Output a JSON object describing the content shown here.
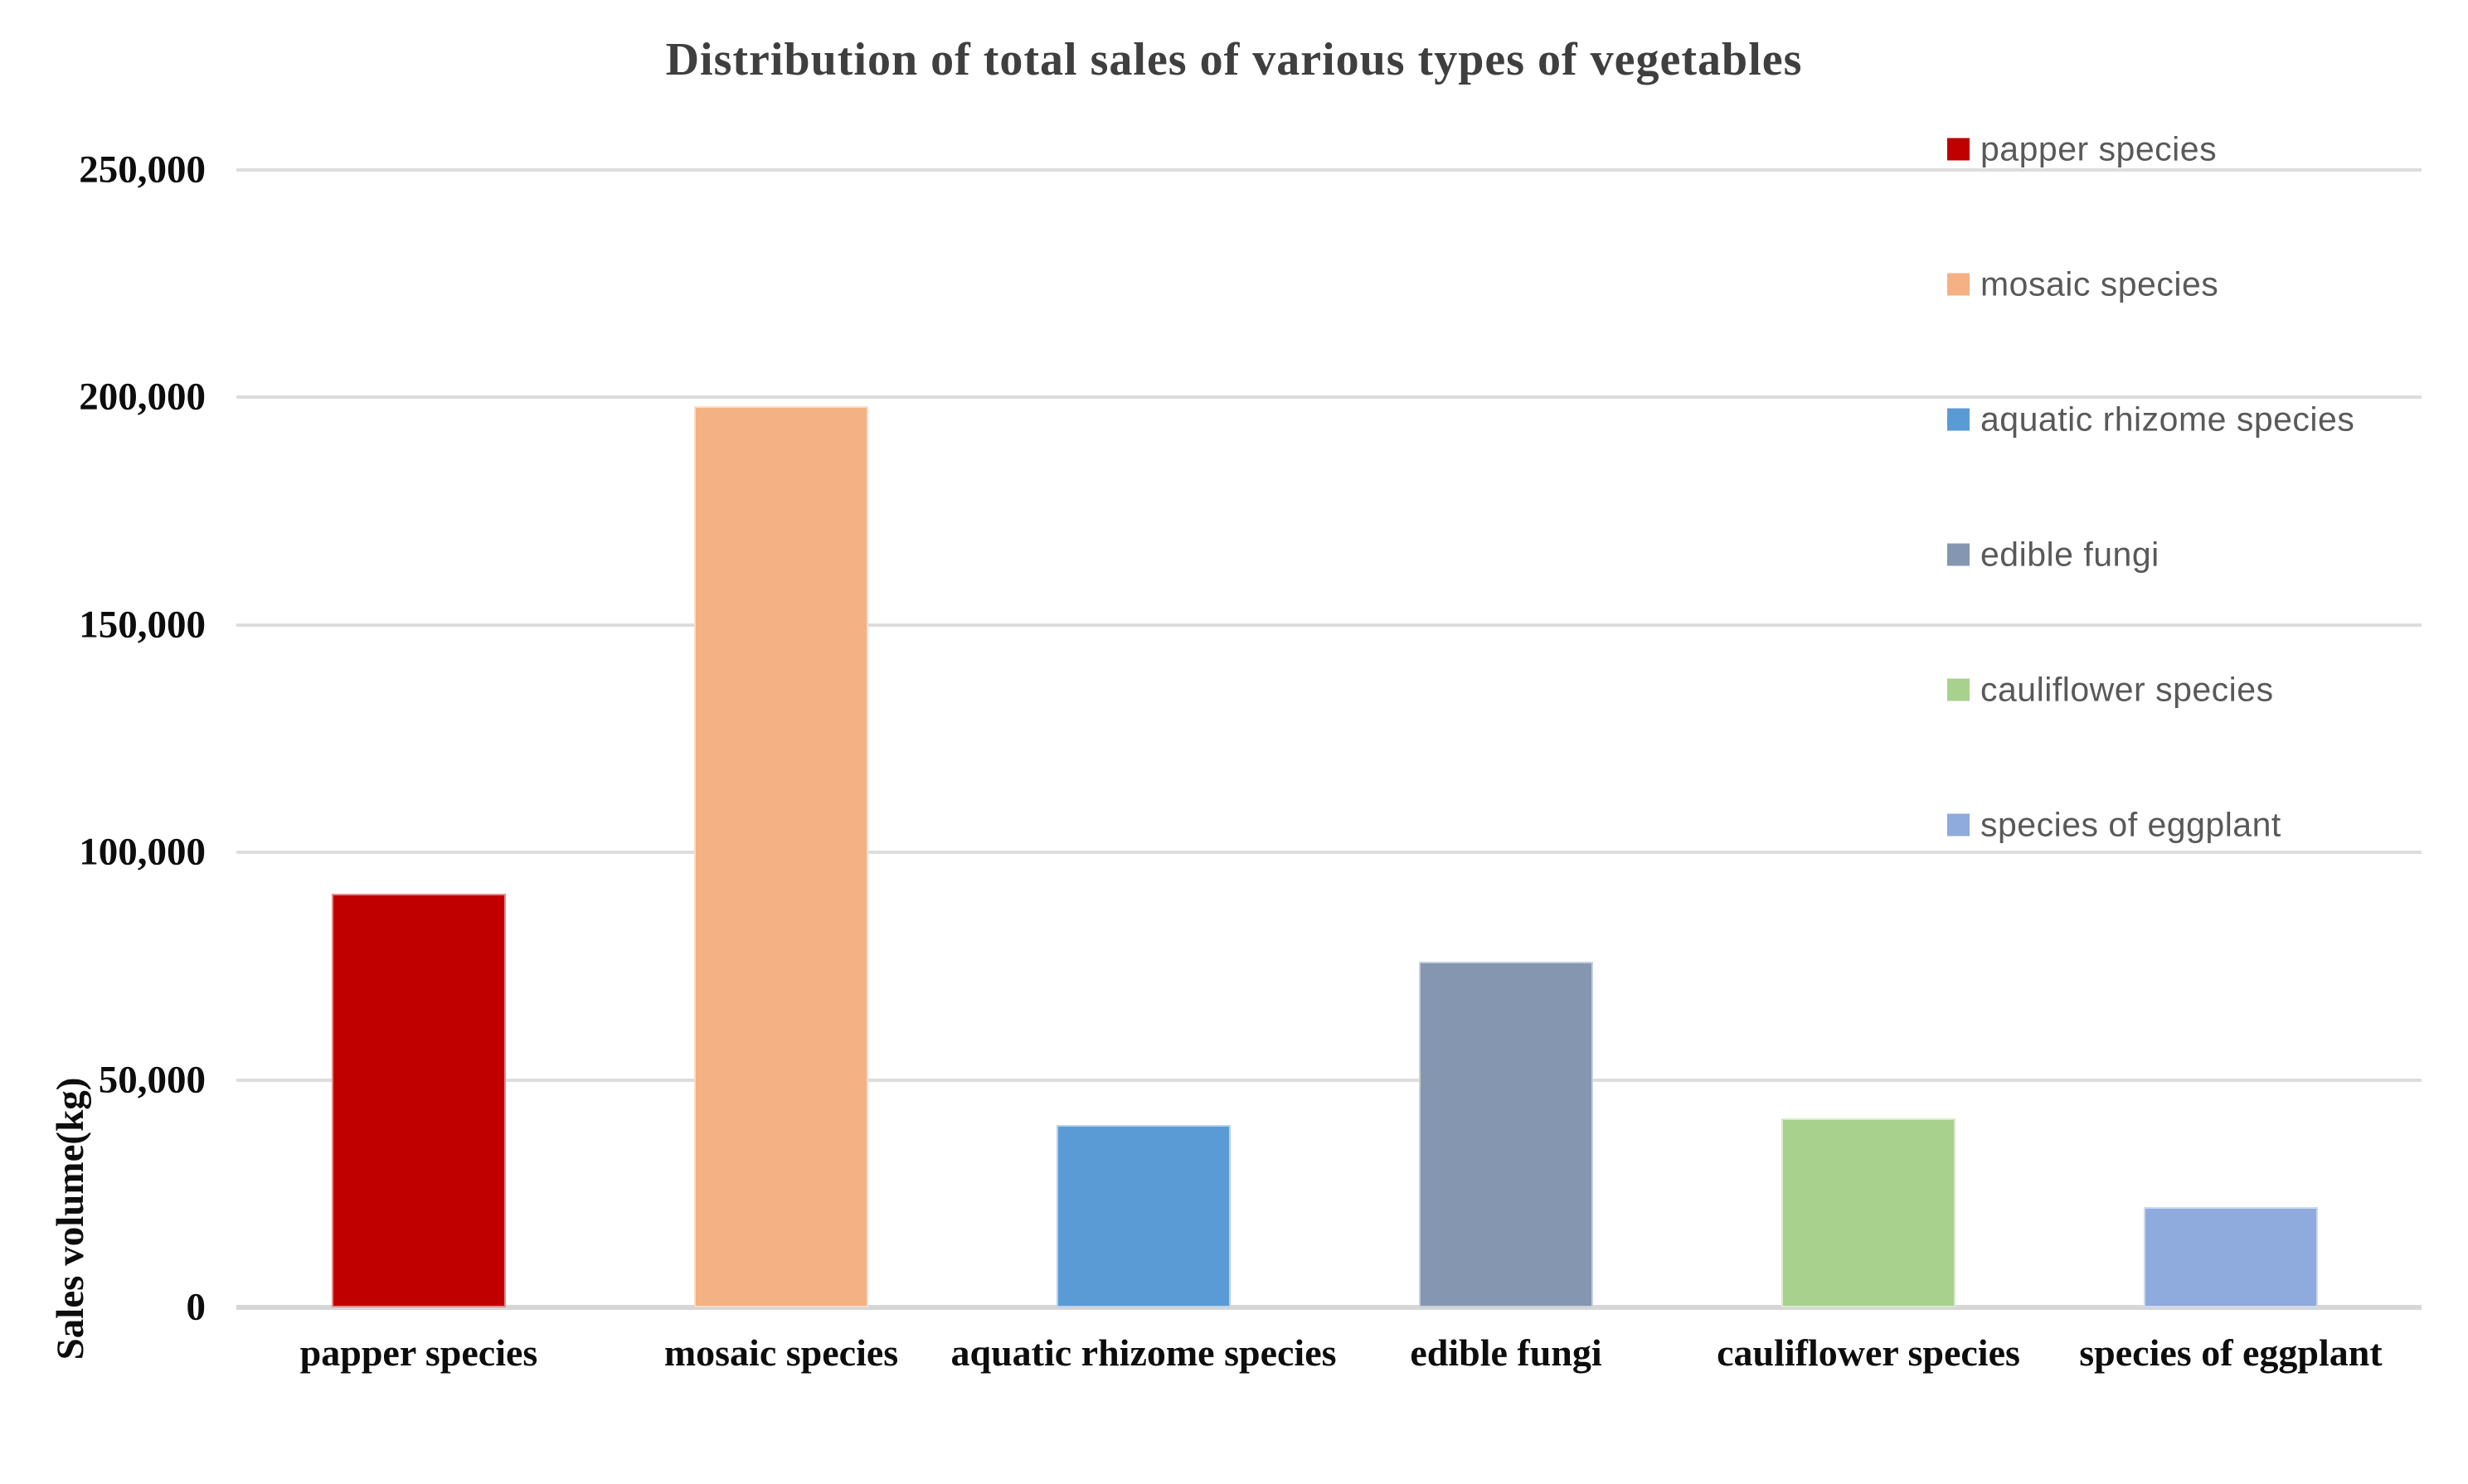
{
  "chart_data": {
    "type": "bar",
    "title": "Distribution of total sales of various types of vegetables",
    "categories": [
      "papper species",
      "mosaic species",
      "aquatic rhizome species",
      "edible fungi",
      "cauliflower species",
      "species of eggplant"
    ],
    "values": [
      91000,
      198000,
      40000,
      76000,
      41500,
      22000
    ],
    "bar_colors": [
      "#C00000",
      "#F4B183",
      "#5B9BD5",
      "#8496B0",
      "#A9D18E",
      "#8FAADC"
    ],
    "xlabel": "",
    "ylabel": "Sales volume(kg)",
    "ylim": [
      0,
      250000
    ],
    "ytick_interval": 50000,
    "ytick_labels": [
      "0",
      "50,000",
      "100,000",
      "150,000",
      "200,000",
      "250,000"
    ],
    "grid": true,
    "legend_position": "right"
  },
  "legend": {
    "items": [
      {
        "label": "papper species",
        "color": "#C00000"
      },
      {
        "label": "mosaic species",
        "color": "#F4B183"
      },
      {
        "label": "aquatic rhizome species",
        "color": "#5B9BD5"
      },
      {
        "label": "edible fungi",
        "color": "#8496B0"
      },
      {
        "label": "cauliflower species",
        "color": "#A9D18E"
      },
      {
        "label": "species of eggplant",
        "color": "#8FAADC"
      }
    ]
  },
  "palette": {
    "gridline": "#DDDDDD",
    "axis_line": "#D6D6D6",
    "title_text": "#3F3F3F",
    "tick_text": "#0D0D0D",
    "legend_text": "#595959",
    "background": "#FFFFFF"
  }
}
